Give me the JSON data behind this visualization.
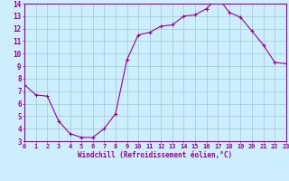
{
  "x": [
    0,
    1,
    2,
    3,
    4,
    5,
    6,
    7,
    8,
    9,
    10,
    11,
    12,
    13,
    14,
    15,
    16,
    17,
    18,
    19,
    20,
    21,
    22,
    23
  ],
  "y": [
    7.5,
    6.7,
    6.6,
    4.6,
    3.6,
    3.3,
    3.3,
    4.0,
    5.2,
    9.5,
    11.5,
    11.7,
    12.2,
    12.3,
    13.0,
    13.1,
    13.6,
    14.5,
    13.3,
    12.9,
    11.8,
    10.7,
    9.3,
    9.2
  ],
  "xlim": [
    0,
    23
  ],
  "ylim": [
    3,
    14
  ],
  "xticks": [
    0,
    1,
    2,
    3,
    4,
    5,
    6,
    7,
    8,
    9,
    10,
    11,
    12,
    13,
    14,
    15,
    16,
    17,
    18,
    19,
    20,
    21,
    22,
    23
  ],
  "yticks": [
    3,
    4,
    5,
    6,
    7,
    8,
    9,
    10,
    11,
    12,
    13,
    14
  ],
  "xlabel": "Windchill (Refroidissement éolien,°C)",
  "line_color": "#990099",
  "marker": "+",
  "bg_color": "#cceeff",
  "grid_color": "#99cccc",
  "tick_label_color": "#990099",
  "axis_color": "#990099",
  "font_name": "monospace"
}
